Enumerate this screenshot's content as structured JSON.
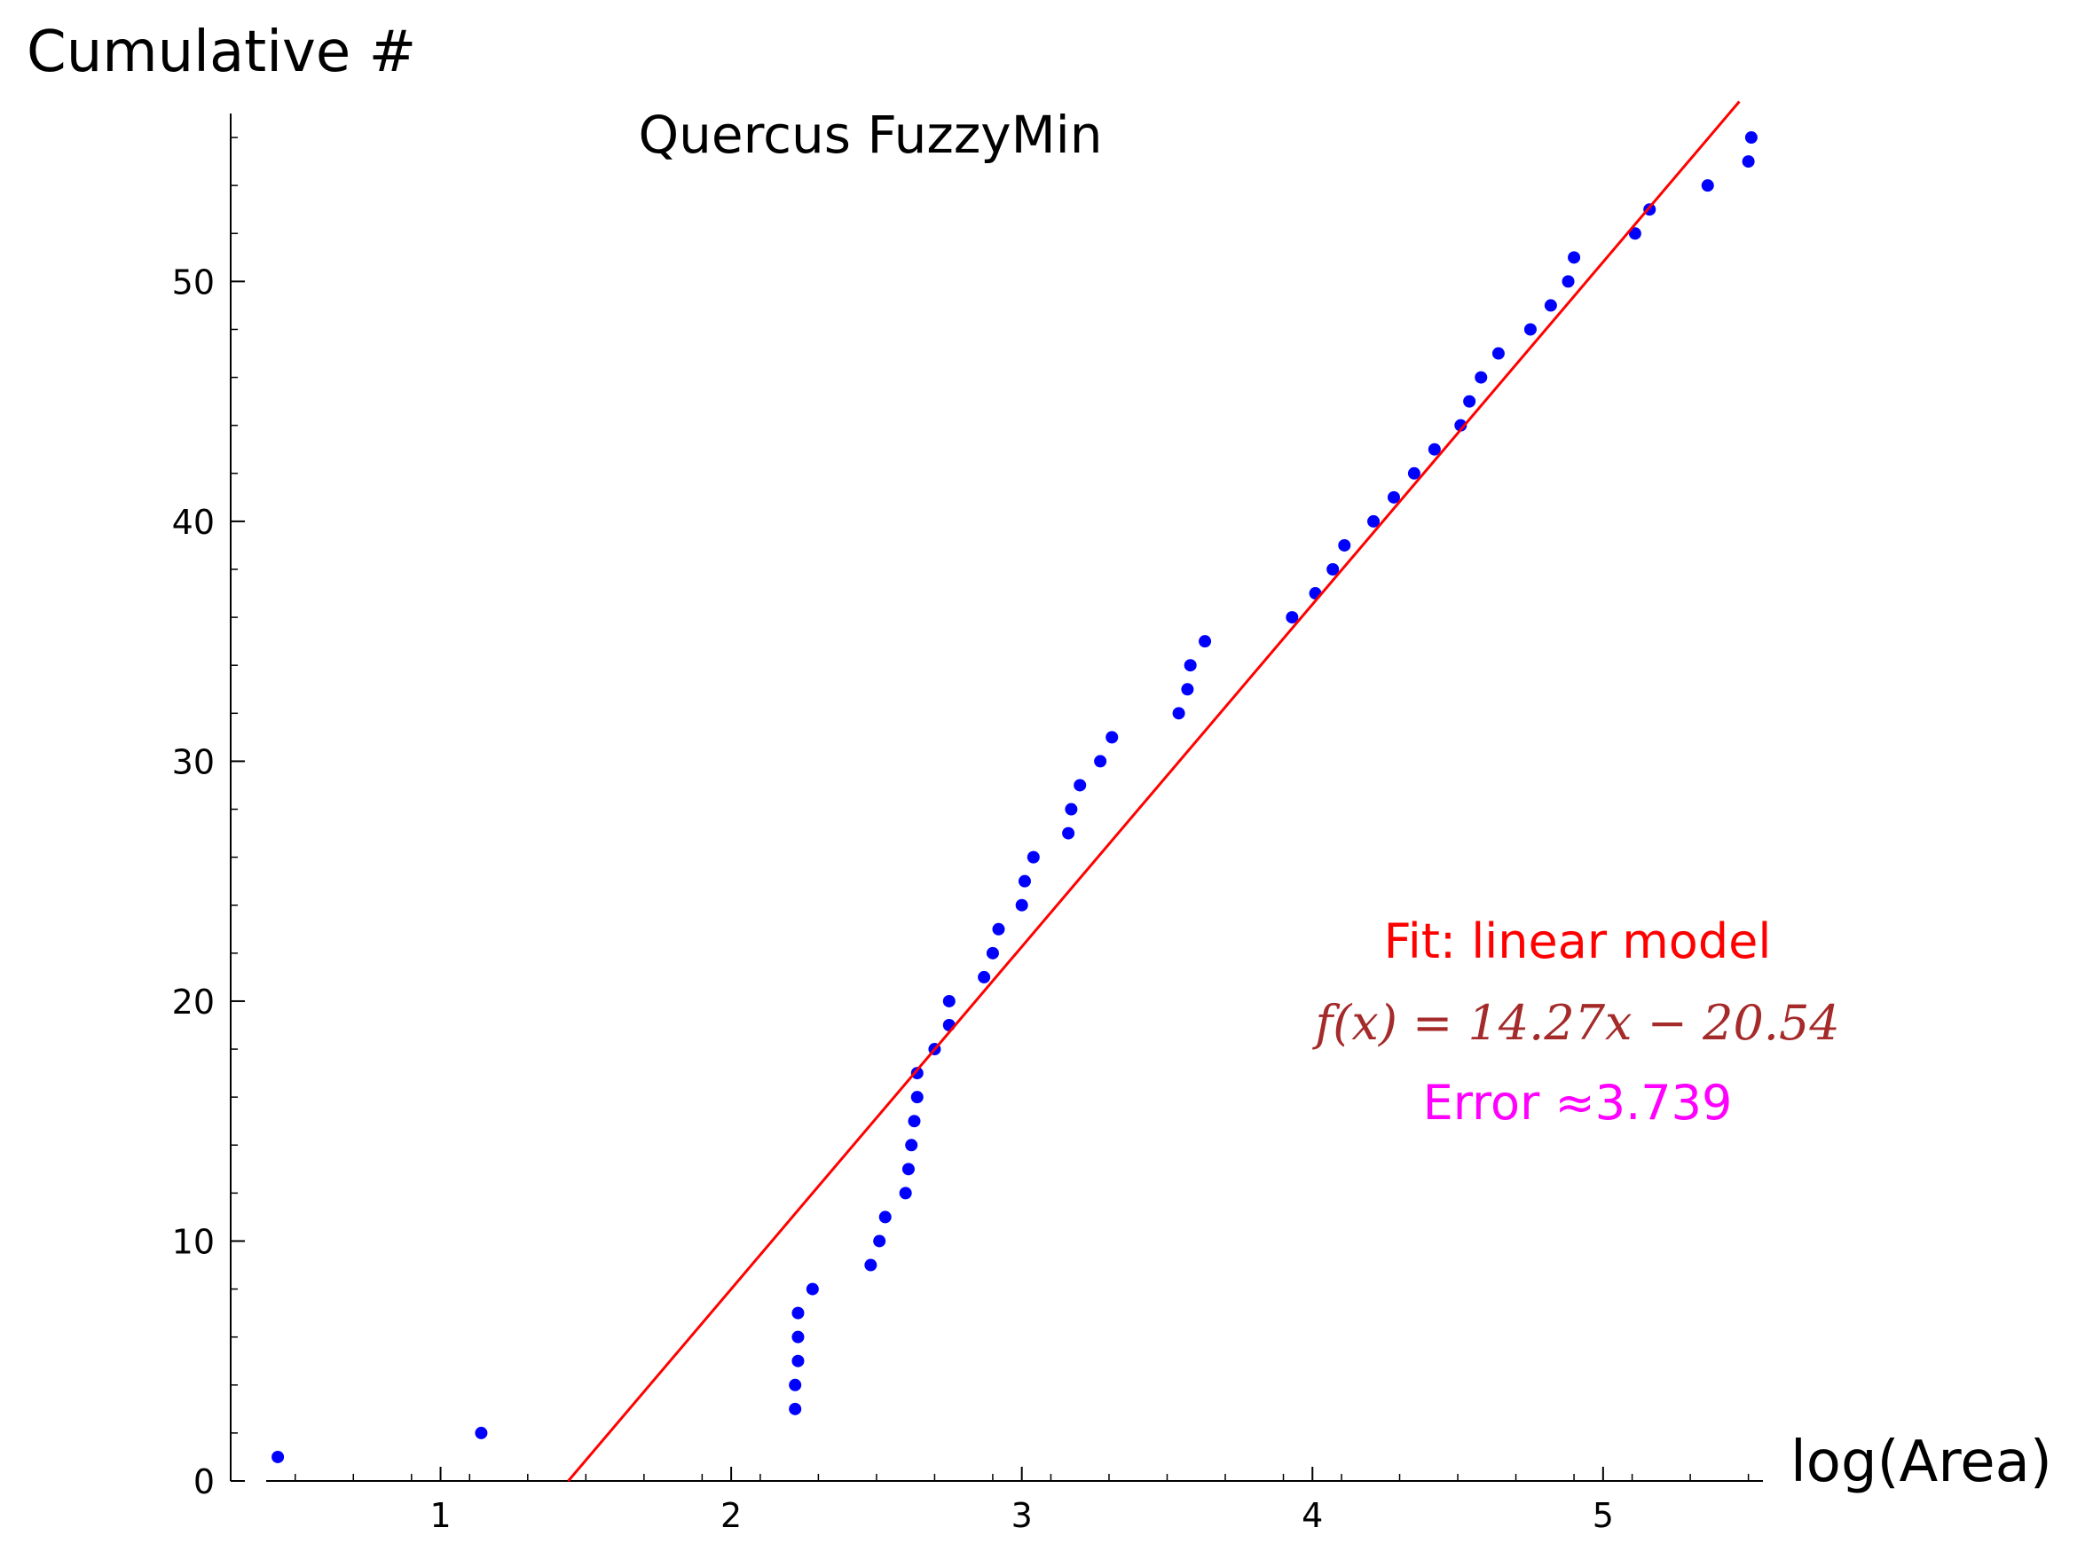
{
  "chart_data": {
    "type": "scatter",
    "title": "Quercus FuzzyMin",
    "xlabel": "log(Area)",
    "ylabel": "Cumulative #",
    "xlim": [
      0.4,
      5.55
    ],
    "ylim": [
      0,
      57
    ],
    "x_ticks": [
      1,
      2,
      3,
      4,
      5
    ],
    "y_ticks": [
      0,
      10,
      20,
      30,
      40,
      50
    ],
    "grid": false,
    "point_color": "#0000ff",
    "line_color": "#ff0000",
    "series": [
      {
        "type": "scatter",
        "color": "#0000ff",
        "points": [
          [
            0.44,
            1
          ],
          [
            1.14,
            2
          ],
          [
            2.22,
            3
          ],
          [
            2.22,
            4
          ],
          [
            2.23,
            5
          ],
          [
            2.23,
            6
          ],
          [
            2.23,
            7
          ],
          [
            2.28,
            8
          ],
          [
            2.48,
            9
          ],
          [
            2.51,
            10
          ],
          [
            2.53,
            11
          ],
          [
            2.6,
            12
          ],
          [
            2.61,
            13
          ],
          [
            2.62,
            14
          ],
          [
            2.63,
            15
          ],
          [
            2.64,
            16
          ],
          [
            2.64,
            17
          ],
          [
            2.7,
            18
          ],
          [
            2.75,
            19
          ],
          [
            2.75,
            20
          ],
          [
            2.87,
            21
          ],
          [
            2.9,
            22
          ],
          [
            2.92,
            23
          ],
          [
            3.0,
            24
          ],
          [
            3.01,
            25
          ],
          [
            3.04,
            26
          ],
          [
            3.16,
            27
          ],
          [
            3.17,
            28
          ],
          [
            3.2,
            29
          ],
          [
            3.27,
            30
          ],
          [
            3.31,
            31
          ],
          [
            3.54,
            32
          ],
          [
            3.57,
            33
          ],
          [
            3.58,
            34
          ],
          [
            3.63,
            35
          ],
          [
            3.93,
            36
          ],
          [
            4.01,
            37
          ],
          [
            4.07,
            38
          ],
          [
            4.11,
            39
          ],
          [
            4.21,
            40
          ],
          [
            4.28,
            41
          ],
          [
            4.35,
            42
          ],
          [
            4.42,
            43
          ],
          [
            4.51,
            44
          ],
          [
            4.54,
            45
          ],
          [
            4.58,
            46
          ],
          [
            4.64,
            47
          ],
          [
            4.75,
            48
          ],
          [
            4.82,
            49
          ],
          [
            4.88,
            50
          ],
          [
            4.9,
            51
          ],
          [
            5.11,
            52
          ],
          [
            5.16,
            53
          ],
          [
            5.36,
            54
          ],
          [
            5.5,
            55
          ],
          [
            5.51,
            56
          ]
        ]
      },
      {
        "type": "line",
        "color": "#ff0000",
        "slope": 14.27,
        "intercept": -20.54
      }
    ],
    "annotations": {
      "fit_label": "Fit: linear model",
      "formula": "f(x) = 14.27x − 20.54",
      "error_label": "Error ≈3.739"
    },
    "annotation_colors": {
      "fit_label": "#ff0000",
      "formula": "#a52a2a",
      "error_label": "#ff00ff"
    }
  }
}
